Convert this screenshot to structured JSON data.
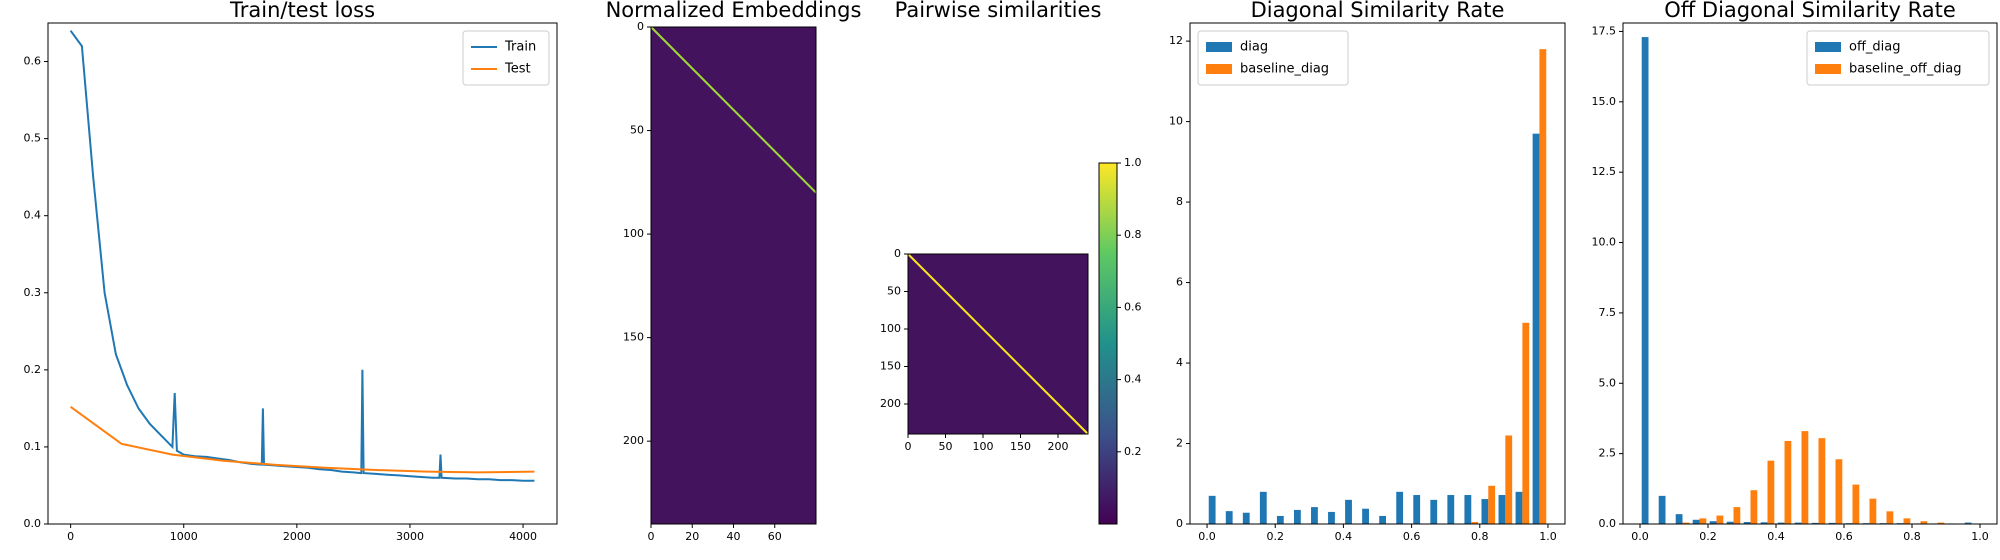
{
  "chart_data": [
    {
      "type": "line",
      "title": "Train/test loss",
      "xlim": [
        -200,
        4300
      ],
      "xticks": [
        0,
        1000,
        2000,
        3000,
        4000
      ],
      "ylim": [
        0,
        0.65
      ],
      "yticks": [
        {
          "value": 0,
          "label": "0.0"
        },
        0.1,
        0.2,
        0.3,
        0.4,
        0.5,
        0.6
      ],
      "legend": "upper right",
      "series": [
        {
          "name": "Train",
          "color": "#1f77b4",
          "x": [
            0,
            100,
            200,
            300,
            400,
            500,
            600,
            700,
            800,
            900,
            920,
            940,
            1000,
            1100,
            1200,
            1300,
            1400,
            1500,
            1600,
            1690,
            1700,
            1710,
            1800,
            1900,
            2000,
            2100,
            2200,
            2300,
            2400,
            2500,
            2570,
            2580,
            2590,
            2700,
            2800,
            2900,
            3000,
            3100,
            3200,
            3260,
            3270,
            3280,
            3400,
            3500,
            3600,
            3700,
            3800,
            3900,
            4000,
            4100
          ],
          "values": [
            0.64,
            0.62,
            0.45,
            0.3,
            0.22,
            0.18,
            0.15,
            0.13,
            0.115,
            0.1,
            0.17,
            0.095,
            0.09,
            0.088,
            0.087,
            0.085,
            0.083,
            0.08,
            0.078,
            0.077,
            0.15,
            0.077,
            0.076,
            0.075,
            0.074,
            0.073,
            0.071,
            0.07,
            0.068,
            0.067,
            0.066,
            0.2,
            0.066,
            0.065,
            0.064,
            0.063,
            0.062,
            0.061,
            0.06,
            0.06,
            0.09,
            0.06,
            0.059,
            0.059,
            0.058,
            0.058,
            0.057,
            0.057,
            0.056,
            0.056
          ]
        },
        {
          "name": "Test",
          "color": "#ff7f0e",
          "x": [
            0,
            450,
            900,
            1350,
            1800,
            2250,
            2700,
            3150,
            3600,
            4100
          ],
          "values": [
            0.152,
            0.104,
            0.09,
            0.082,
            0.077,
            0.073,
            0.07,
            0.068,
            0.067,
            0.068
          ]
        }
      ]
    },
    {
      "type": "heatmap",
      "title": "Normalized Embeddings",
      "xlim": [
        0,
        80
      ],
      "xticks": [
        0,
        20,
        40,
        60
      ],
      "ylim": [
        240,
        0
      ],
      "yticks": [
        0,
        50,
        100,
        150,
        200
      ]
    },
    {
      "type": "heatmap",
      "title": "Pairwise similarities",
      "xlim": [
        0,
        240
      ],
      "xticks": [
        0,
        50,
        100,
        150,
        200
      ],
      "ylim": [
        240,
        0
      ],
      "yticks": [
        0,
        50,
        100,
        150,
        200
      ],
      "clim": [
        0,
        1
      ],
      "cticks": [
        0.2,
        0.4,
        0.6,
        0.8,
        {
          "value": 1,
          "label": "1.0"
        }
      ]
    },
    {
      "type": "histogram",
      "title": "Diagonal Similarity Rate",
      "xlim": [
        -0.05,
        1.05
      ],
      "xticks": [
        {
          "value": 0,
          "label": "0.0"
        },
        0.2,
        0.4,
        0.6,
        0.8,
        {
          "value": 1,
          "label": "1.0"
        }
      ],
      "ylim": [
        0,
        12.45
      ],
      "yticks": [
        0,
        2,
        4,
        6,
        8,
        10,
        12
      ],
      "legend": "upper left",
      "bins": [
        0,
        0.05,
        0.1,
        0.15,
        0.2,
        0.25,
        0.3,
        0.35,
        0.4,
        0.45,
        0.5,
        0.55,
        0.6,
        0.65,
        0.7,
        0.75,
        0.8,
        0.85,
        0.9,
        0.95,
        1
      ],
      "series": [
        {
          "name": "diag",
          "color": "#1f77b4",
          "values": [
            0.7,
            0.32,
            0.28,
            0.8,
            0.2,
            0.35,
            0.42,
            0.3,
            0.6,
            0.38,
            0.2,
            0.8,
            0.72,
            0.6,
            0.72,
            0.72,
            0.62,
            0.72,
            0.8,
            9.7
          ]
        },
        {
          "name": "baseline_diag",
          "color": "#ff7f0e",
          "values": [
            0,
            0,
            0,
            0,
            0,
            0,
            0,
            0,
            0,
            0,
            0,
            0,
            0,
            0,
            0,
            0.05,
            0.95,
            2.2,
            5.0,
            11.8
          ]
        }
      ]
    },
    {
      "type": "histogram",
      "title": "Off Diagonal Similarity Rate",
      "xlim": [
        -0.05,
        1.05
      ],
      "xticks": [
        {
          "value": 0,
          "label": "0.0"
        },
        0.2,
        0.4,
        0.6,
        0.8,
        {
          "value": 1,
          "label": "1.0"
        }
      ],
      "ylim": [
        0,
        17.8
      ],
      "yticks": [
        {
          "value": 0,
          "label": "0.0"
        },
        2.5,
        {
          "value": 5,
          "label": "5.0"
        },
        7.5,
        {
          "value": 10,
          "label": "10.0"
        },
        12.5,
        {
          "value": 15,
          "label": "15.0"
        },
        17.5
      ],
      "legend": "upper right",
      "bins": [
        0,
        0.05,
        0.1,
        0.15,
        0.2,
        0.25,
        0.3,
        0.35,
        0.4,
        0.45,
        0.5,
        0.55,
        0.6,
        0.65,
        0.7,
        0.75,
        0.8,
        0.85,
        0.9,
        0.95,
        1
      ],
      "series": [
        {
          "name": "off_diag",
          "color": "#1f77b4",
          "values": [
            17.3,
            1.0,
            0.35,
            0.15,
            0.1,
            0.08,
            0.07,
            0.06,
            0.05,
            0.05,
            0.04,
            0.04,
            0.03,
            0.03,
            0.03,
            0.03,
            0.02,
            0.02,
            0.02,
            0.05
          ]
        },
        {
          "name": "baseline_off_diag",
          "color": "#ff7f0e",
          "values": [
            0,
            0,
            0.05,
            0.2,
            0.3,
            0.6,
            1.2,
            2.25,
            2.95,
            3.3,
            3.05,
            2.3,
            1.4,
            0.9,
            0.45,
            0.2,
            0.1,
            0.05,
            0,
            0
          ]
        }
      ]
    }
  ]
}
